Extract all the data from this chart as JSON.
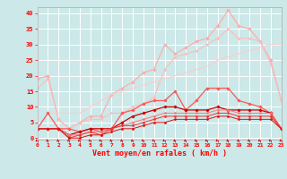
{
  "x": [
    0,
    1,
    2,
    3,
    4,
    5,
    6,
    7,
    8,
    9,
    10,
    11,
    12,
    13,
    14,
    15,
    16,
    17,
    18,
    19,
    20,
    21,
    22,
    23
  ],
  "series": [
    {
      "color": "#ffaaaa",
      "lw": 0.8,
      "marker": "D",
      "ms": 1.8,
      "values": [
        19,
        20,
        6,
        3,
        5,
        7,
        7,
        14,
        16,
        18,
        21,
        22,
        30,
        27,
        29,
        31,
        32,
        36,
        41,
        36,
        35,
        31,
        25,
        12
      ]
    },
    {
      "color": "#ffbbbb",
      "lw": 0.8,
      "marker": "D",
      "ms": 1.5,
      "values": [
        16,
        19,
        6,
        3,
        5,
        6,
        6,
        8,
        8,
        10,
        11,
        13,
        22,
        26,
        27,
        28,
        30,
        32,
        35,
        32,
        32,
        31,
        24,
        12
      ]
    },
    {
      "color": "#ffcccc",
      "lw": 0.8,
      "marker": null,
      "ms": 0,
      "values": [
        3,
        8,
        8,
        8,
        8,
        10,
        12,
        14,
        15,
        16,
        17,
        18,
        19,
        20,
        21,
        22,
        23,
        25,
        26,
        27,
        28,
        29,
        30,
        30
      ]
    },
    {
      "color": "#ff5555",
      "lw": 0.9,
      "marker": "D",
      "ms": 1.8,
      "values": [
        3,
        8,
        3,
        3,
        2,
        3,
        2,
        3,
        8,
        9,
        11,
        12,
        12,
        15,
        9,
        12,
        16,
        16,
        16,
        12,
        11,
        10,
        8,
        3
      ]
    },
    {
      "color": "#cc0000",
      "lw": 0.9,
      "marker": "D",
      "ms": 1.8,
      "values": [
        3,
        3,
        3,
        1,
        2,
        3,
        3,
        3,
        5,
        7,
        8,
        9,
        10,
        10,
        9,
        9,
        9,
        10,
        9,
        9,
        9,
        9,
        8,
        3
      ]
    },
    {
      "color": "#ff7777",
      "lw": 0.7,
      "marker": "D",
      "ms": 1.5,
      "values": [
        3,
        3,
        3,
        1,
        1,
        2,
        2,
        3,
        4,
        5,
        6,
        7,
        8,
        8,
        8,
        8,
        8,
        9,
        9,
        8,
        8,
        8,
        8,
        3
      ]
    },
    {
      "color": "#ee3333",
      "lw": 0.7,
      "marker": "D",
      "ms": 1.5,
      "values": [
        3,
        3,
        3,
        0,
        1,
        2,
        1,
        3,
        4,
        4,
        5,
        6,
        7,
        7,
        7,
        7,
        7,
        8,
        8,
        7,
        7,
        7,
        7,
        3
      ]
    },
    {
      "color": "#dd1111",
      "lw": 0.7,
      "marker": "D",
      "ms": 1.5,
      "values": [
        3,
        3,
        3,
        0,
        0,
        1,
        1,
        2,
        3,
        3,
        4,
        5,
        5,
        6,
        6,
        6,
        6,
        7,
        7,
        6,
        6,
        6,
        6,
        3
      ]
    }
  ],
  "xlabel": "Vent moyen/en rafales ( km/h )",
  "xlim": [
    0,
    23
  ],
  "ylim": [
    -0.5,
    42
  ],
  "xticks": [
    0,
    1,
    2,
    3,
    4,
    5,
    6,
    7,
    8,
    9,
    10,
    11,
    12,
    13,
    14,
    15,
    16,
    17,
    18,
    19,
    20,
    21,
    22,
    23
  ],
  "yticks": [
    0,
    5,
    10,
    15,
    20,
    25,
    30,
    35,
    40
  ],
  "bg_color": "#cce8e8",
  "grid_color": "#ffffff",
  "tick_color": "#ff0000",
  "label_color": "#ff0000",
  "arrow_color": "#cc0000",
  "spine_color": "#aaaaaa"
}
